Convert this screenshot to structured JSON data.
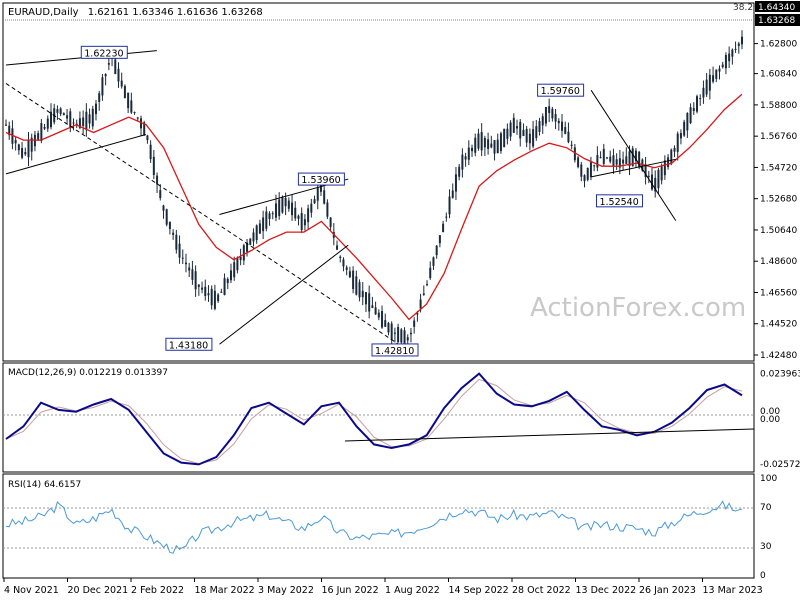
{
  "header": {
    "symbol": "EURAUD",
    "timeframe": "Daily",
    "ohlc": "1.62161 1.63346 1.61636 1.63268"
  },
  "watermark": "ActionForex.com",
  "price_axis": {
    "ticks": [
      "1.62800",
      "1.60840",
      "1.58800",
      "1.56760",
      "1.54720",
      "1.52680",
      "1.50640",
      "1.48600",
      "1.46560",
      "1.44520",
      "1.42480"
    ],
    "last_price": "1.63268",
    "top_label": "1.64340",
    "fib_label": "38.2"
  },
  "x_axis": {
    "labels": [
      "4 Nov 2021",
      "20 Dec 2021",
      "2 Feb 2022",
      "18 Mar 2022",
      "3 May 2022",
      "16 Jun 2022",
      "1 Aug 2022",
      "14 Sep 2022",
      "28 Oct 2022",
      "13 Dec 2022",
      "26 Jan 2023",
      "13 Mar 2023"
    ]
  },
  "annotations": [
    "1.62230",
    "1.53960",
    "1.43180",
    "1.42810",
    "1.59760",
    "1.52540"
  ],
  "macd": {
    "label": "MACD(12,26,9) 0.012219 0.013397",
    "ticks": [
      "0.023963",
      "0.00",
      "0.00",
      "-0.025726"
    ]
  },
  "rsi": {
    "label": "RSI(14) 64.6157",
    "ticks": [
      "100",
      "70",
      "30",
      "0"
    ]
  },
  "colors": {
    "candles": "#1b2a3a",
    "moving_average": "#d81818",
    "macd_line": "#0a0a8a",
    "signal_line": "#c8a0a0",
    "rsi_line": "#4a9ad8",
    "trendline": "#000000",
    "label_border": "#2030a0"
  },
  "chart_data": [
    {
      "type": "line",
      "name_ref": "price",
      "x_labels": [
        "4 Nov 2021",
        "20 Dec 2021",
        "2 Feb 2022",
        "18 Mar 2022",
        "3 May 2022",
        "16 Jun 2022",
        "1 Aug 2022",
        "14 Sep 2022",
        "28 Oct 2022",
        "13 Dec 2022",
        "26 Jan 2023",
        "13 Mar 2023"
      ],
      "close_approx": [
        1.575,
        1.555,
        1.57,
        1.585,
        1.575,
        1.58,
        1.62,
        1.59,
        1.57,
        1.52,
        1.49,
        1.47,
        1.46,
        1.48,
        1.5,
        1.515,
        1.525,
        1.51,
        1.535,
        1.49,
        1.47,
        1.455,
        1.44,
        1.435,
        1.47,
        1.51,
        1.55,
        1.565,
        1.56,
        1.575,
        1.565,
        1.585,
        1.57,
        1.54,
        1.555,
        1.55,
        1.555,
        1.535,
        1.555,
        1.58,
        1.6,
        1.615,
        1.63
      ],
      "moving_average_approx": [
        1.57,
        1.565,
        1.565,
        1.57,
        1.575,
        1.57,
        1.575,
        1.58,
        1.575,
        1.56,
        1.535,
        1.51,
        1.495,
        1.487,
        1.493,
        1.5,
        1.505,
        1.505,
        1.512,
        1.5,
        1.488,
        1.475,
        1.462,
        1.448,
        1.458,
        1.478,
        1.507,
        1.535,
        1.545,
        1.552,
        1.558,
        1.563,
        1.56,
        1.553,
        1.548,
        1.548,
        1.55,
        1.547,
        1.55,
        1.56,
        1.572,
        1.585,
        1.595
      ],
      "ylim": [
        1.4248,
        1.6434
      ]
    },
    {
      "type": "line",
      "name_ref": "macd",
      "macd_approx": [
        -0.012,
        -0.005,
        0.008,
        0.004,
        0.003,
        0.007,
        0.01,
        0.004,
        -0.008,
        -0.02,
        -0.025,
        -0.026,
        -0.022,
        -0.01,
        0.005,
        0.008,
        0.002,
        -0.004,
        0.006,
        0.008,
        -0.005,
        -0.015,
        -0.017,
        -0.015,
        -0.01,
        0.005,
        0.016,
        0.024,
        0.013,
        0.007,
        0.006,
        0.009,
        0.014,
        0.004,
        -0.005,
        -0.007,
        -0.01,
        -0.008,
        -0.003,
        0.005,
        0.015,
        0.018,
        0.012
      ],
      "ylim": [
        -0.028,
        0.026
      ]
    },
    {
      "type": "line",
      "name_ref": "rsi",
      "rsi_approx": [
        52,
        55,
        60,
        72,
        52,
        58,
        68,
        48,
        40,
        30,
        24,
        42,
        48,
        55,
        58,
        62,
        54,
        48,
        60,
        44,
        38,
        40,
        42,
        45,
        52,
        60,
        68,
        65,
        58,
        62,
        60,
        64,
        58,
        48,
        52,
        50,
        48,
        44,
        54,
        62,
        68,
        72,
        65
      ],
      "ylim": [
        0,
        100
      ]
    }
  ]
}
